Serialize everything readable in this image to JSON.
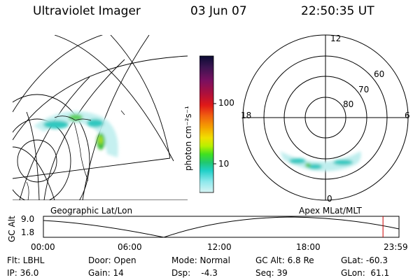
{
  "header": {
    "instrument": "Ultraviolet Imager",
    "date": "03 Jun 07",
    "time": "22:50:35 UT"
  },
  "colorbar": {
    "label": "photon cm⁻²s⁻¹",
    "ticks": [
      "100",
      "10"
    ],
    "colors": [
      "#0b0b33",
      "#3a1450",
      "#7a1060",
      "#b0103a",
      "#e01818",
      "#f06010",
      "#f5a000",
      "#f0e000",
      "#b8f000",
      "#40e020",
      "#20c870",
      "#20d0c8",
      "#8ee8ec",
      "#d8f4f4"
    ]
  },
  "polar": {
    "mlt_labels": {
      "top": "12",
      "left": "18",
      "right": "6",
      "bottom": "0"
    },
    "lat_labels": [
      "60",
      "70",
      "80"
    ]
  },
  "panel_labels": {
    "left": "Geographic Lat/Lon",
    "right": "Apex  MLat/MLT"
  },
  "altitude_plot": {
    "ylabel": "GC Alt",
    "yticks": [
      "9.0",
      "1.8"
    ],
    "xticks": [
      "00:00",
      "06:00",
      "12:00",
      "18:00",
      "23:59"
    ],
    "marker_time_fraction": 0.955,
    "marker_color": "#cc0000"
  },
  "info": {
    "row1": {
      "filter": "Flt: LBHL",
      "door": "Door: Open",
      "mode": "Mode: Normal",
      "gc_alt": "GC Alt: 6.8 Re",
      "glat": "GLat: -60.3"
    },
    "row2": {
      "ip": "IP: 36.0",
      "gain": "Gain: 14",
      "dsp": "Dsp:    -4.3",
      "seq": "Seq: 39",
      "glon": "GLon:  61.1"
    }
  }
}
